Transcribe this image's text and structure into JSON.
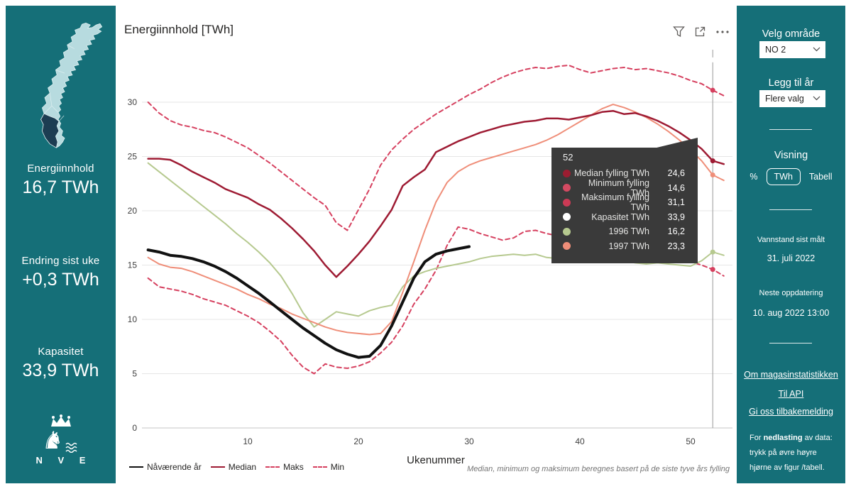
{
  "left_panel": {
    "stats": [
      {
        "label": "Energiinnhold",
        "value": "16,7 TWh"
      },
      {
        "label": "Endring sist uke",
        "value": "+0,3 TWh"
      },
      {
        "label": "Kapasitet",
        "value": "33,9 TWh"
      }
    ],
    "logo_text": "N V E",
    "map_colors": {
      "land": "#b7dbdf",
      "selected_region": "#1c3d52",
      "border": "#dff0f1"
    }
  },
  "chart": {
    "title": "Energiinnhold [TWh]",
    "xlabel": "Ukenummer",
    "footnote": "Median, minimum og maksimum beregnes basert på de siste tyve års fylling",
    "legend": [
      {
        "label": "Nåværende år",
        "color": "#111111",
        "dash": false
      },
      {
        "label": "Median",
        "color": "#9e1b33",
        "dash": false
      },
      {
        "label": "Maks",
        "color": "#d6405f",
        "dash": true
      },
      {
        "label": "Min",
        "color": "#d6405f",
        "dash": true
      }
    ]
  },
  "chart_data": {
    "type": "line",
    "xlabel": "Ukenummer",
    "x_range": [
      1,
      53
    ],
    "ylim": [
      0,
      33.9
    ],
    "y_ticks": [
      0,
      5,
      10,
      15,
      20,
      25,
      30
    ],
    "x_ticks": [
      10,
      20,
      30,
      40,
      50
    ],
    "grid": "horizontal-only",
    "selected_week": 52,
    "series": [
      {
        "name": "Maks",
        "color": "#d6405f",
        "dash": true,
        "width": 2,
        "selected_value": 31.1,
        "values": [
          30.0,
          29.0,
          28.3,
          27.9,
          27.7,
          27.4,
          27.2,
          26.8,
          26.3,
          25.8,
          25.1,
          24.4,
          23.6,
          22.8,
          22.0,
          21.2,
          20.5,
          18.9,
          18.2,
          20.1,
          22.0,
          24.2,
          25.6,
          26.6,
          27.5,
          28.2,
          28.9,
          29.5,
          30.1,
          30.7,
          31.2,
          31.8,
          32.3,
          32.7,
          33.0,
          33.2,
          33.1,
          33.3,
          33.4,
          33.0,
          32.7,
          32.9,
          33.1,
          33.2,
          33.0,
          33.1,
          32.9,
          32.7,
          32.4,
          32.0,
          31.7,
          31.1,
          30.6
        ]
      },
      {
        "name": "Min",
        "color": "#d6405f",
        "dash": true,
        "width": 2,
        "selected_value": 14.6,
        "values": [
          13.8,
          13.0,
          12.8,
          12.6,
          12.3,
          11.9,
          11.6,
          11.3,
          10.8,
          10.3,
          9.7,
          8.9,
          8.0,
          6.7,
          5.6,
          5.0,
          5.9,
          5.6,
          5.5,
          5.7,
          6.1,
          6.9,
          7.9,
          9.4,
          11.4,
          12.8,
          14.5,
          16.8,
          18.5,
          18.3,
          17.9,
          17.6,
          17.3,
          17.5,
          18.1,
          18.2,
          17.9,
          17.7,
          17.9,
          18.1,
          18.0,
          18.2,
          18.3,
          18.1,
          17.9,
          17.5,
          17.0,
          16.4,
          15.8,
          15.3,
          15.0,
          14.6,
          14.0
        ]
      },
      {
        "name": "Kapasitet",
        "color": "#ffffff",
        "dash": false,
        "width": 2,
        "selected_value": 33.9,
        "x": [
          1,
          53
        ],
        "values": [
          33.9,
          33.9
        ]
      },
      {
        "name": "1996",
        "color": "#b6c98f",
        "dash": false,
        "width": 2,
        "selected_value": 16.2,
        "values": [
          24.4,
          23.6,
          22.8,
          22.0,
          21.2,
          20.4,
          19.6,
          18.8,
          17.9,
          17.1,
          16.2,
          15.2,
          14.0,
          12.4,
          10.6,
          9.3,
          10.0,
          10.7,
          10.5,
          10.3,
          10.8,
          11.1,
          11.3,
          13.0,
          14.0,
          14.4,
          14.7,
          14.9,
          15.1,
          15.3,
          15.6,
          15.8,
          15.9,
          16.0,
          15.9,
          16.0,
          15.7,
          15.6,
          15.5,
          15.4,
          15.3,
          15.4,
          15.5,
          15.4,
          15.2,
          15.1,
          15.2,
          15.1,
          15.0,
          14.9,
          15.4,
          16.2,
          15.9
        ]
      },
      {
        "name": "1997",
        "color": "#ef8e79",
        "dash": false,
        "width": 2,
        "selected_value": 23.3,
        "values": [
          15.7,
          15.1,
          14.8,
          14.7,
          14.4,
          14.0,
          13.6,
          13.2,
          12.8,
          12.3,
          11.9,
          11.4,
          11.0,
          10.5,
          10.1,
          9.7,
          9.3,
          9.0,
          8.8,
          8.7,
          8.6,
          8.7,
          9.8,
          12.5,
          15.3,
          18.2,
          20.8,
          22.6,
          23.6,
          24.2,
          24.6,
          24.9,
          25.2,
          25.5,
          25.8,
          26.1,
          26.5,
          27.0,
          27.6,
          28.2,
          28.8,
          29.4,
          29.8,
          29.5,
          29.1,
          28.6,
          28.0,
          27.3,
          26.5,
          25.6,
          24.6,
          23.3,
          22.8
        ]
      },
      {
        "name": "Median",
        "color": "#9e1b33",
        "dash": false,
        "width": 2.5,
        "selected_value": 24.6,
        "values": [
          24.8,
          24.8,
          24.7,
          24.2,
          23.6,
          23.1,
          22.6,
          22.0,
          21.6,
          21.2,
          20.6,
          20.1,
          19.3,
          18.4,
          17.4,
          16.3,
          15.0,
          13.9,
          14.9,
          16.0,
          17.2,
          18.6,
          20.1,
          22.3,
          23.1,
          23.8,
          25.4,
          25.9,
          26.4,
          26.8,
          27.2,
          27.5,
          27.8,
          28.0,
          28.2,
          28.3,
          28.5,
          28.5,
          28.4,
          28.6,
          28.8,
          29.1,
          29.2,
          28.9,
          29.0,
          28.7,
          28.3,
          27.8,
          27.2,
          26.5,
          25.7,
          24.6,
          24.3
        ]
      },
      {
        "name": "Nåværende år",
        "color": "#111111",
        "dash": false,
        "width": 4,
        "selected_value": null,
        "values": [
          16.4,
          16.2,
          15.9,
          15.8,
          15.6,
          15.3,
          14.9,
          14.4,
          13.8,
          13.1,
          12.4,
          11.6,
          10.8,
          10.0,
          9.2,
          8.5,
          7.8,
          7.2,
          6.8,
          6.5,
          6.6,
          7.6,
          9.4,
          11.6,
          13.8,
          15.3,
          16.0,
          16.3,
          16.5,
          16.7
        ]
      }
    ]
  },
  "tooltip": {
    "week": "52",
    "rows": [
      {
        "label": "Median fylling TWh",
        "value": "24,6",
        "color": "#9b1d31"
      },
      {
        "label": "Minimum fylling TWh",
        "value": "14,6",
        "color": "#d44a62"
      },
      {
        "label": "Maksimum fylling TWh",
        "value": "31,1",
        "color": "#cb3a55"
      },
      {
        "label": "Kapasitet TWh",
        "value": "33,9",
        "color": "#ffffff"
      },
      {
        "label": "1996 TWh",
        "value": "16,2",
        "color": "#b6c98f"
      },
      {
        "label": "1997 TWh",
        "value": "23,3",
        "color": "#ef8e79"
      }
    ]
  },
  "right_panel": {
    "select_area_label": "Velg område",
    "area_value": "NO 2",
    "add_year_label": "Legg til år",
    "add_year_value": "Flere valg",
    "view_label": "Visning",
    "view_options": [
      "%",
      "TWh",
      "Tabell"
    ],
    "view_selected": "TWh",
    "measured_label": "Vannstand sist målt",
    "measured_value": "31. juli 2022",
    "next_update_label": "Neste oppdatering",
    "next_update_value": "10. aug 2022 13:00",
    "links": [
      "Om magasinstatistikken",
      "Til API",
      "Gi oss tilbakemelding"
    ],
    "note_line1_pre": "For ",
    "note_line1_bold": "nedlasting",
    "note_line1_post": " av data:",
    "note_line2": "trykk på øvre høyre",
    "note_line3": "hjørne av figur /tabell."
  }
}
